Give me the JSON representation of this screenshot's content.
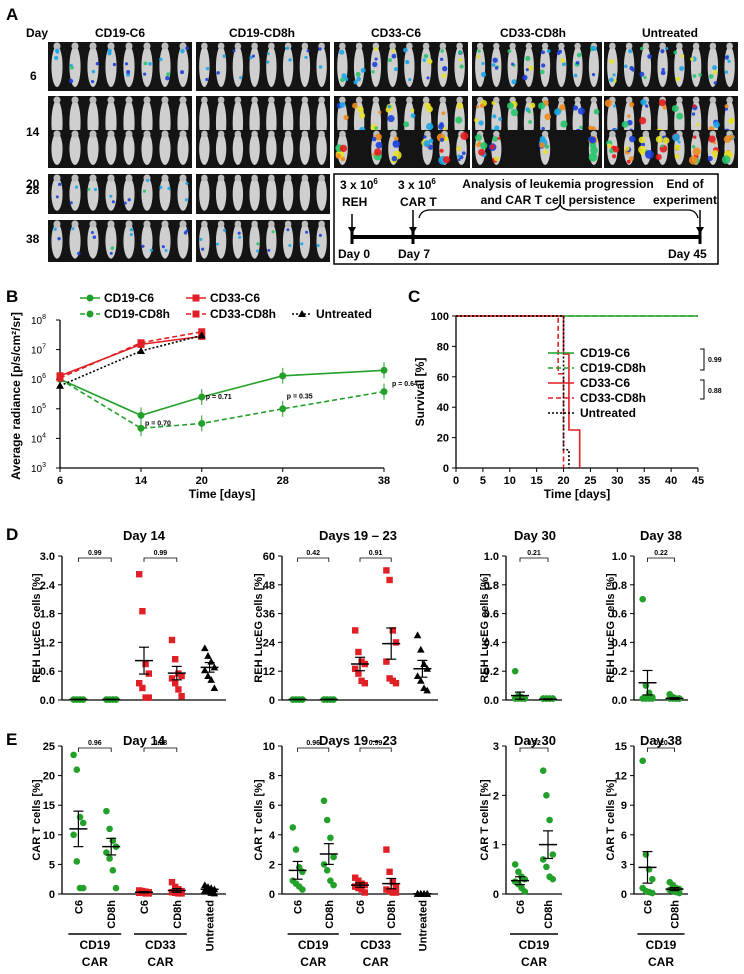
{
  "panel_labels": [
    "A",
    "B",
    "C",
    "D",
    "E"
  ],
  "panelA": {
    "day_header": "Day",
    "days": [
      "6",
      "14",
      "20",
      "28",
      "38"
    ],
    "groups": [
      "CD19-C6",
      "CD19-CD8h",
      "CD33-C6",
      "CD33-CD8h",
      "Untreated"
    ],
    "timeline": {
      "event1_line1": "3 x 10",
      "event1_sup": "6",
      "event1_line2": "REH",
      "event2_line1": "3 x 10",
      "event2_sup": "6",
      "event2_line2": "CAR T",
      "analysis_line1": "Analysis of leukemia progression",
      "analysis_line2": "and CAR T cell persistence",
      "end_line1": "End of",
      "end_line2": "experiment",
      "day0": "Day 0",
      "day7": "Day 7",
      "day45": "Day 45"
    }
  },
  "colors": {
    "green": "#22a02a",
    "red": "#e01f26",
    "black": "#000000"
  },
  "chart_data": [
    {
      "panel": "B",
      "type": "line",
      "title": "",
      "xlabel": "Time [days]",
      "ylabel": "Average radiance [p/s/cm²/sr]",
      "x": [
        6,
        14,
        20,
        28,
        38
      ],
      "xticks": [
        "6",
        "14",
        "20",
        "28",
        "38"
      ],
      "yscale": "log",
      "ylim": [
        1000,
        100000000
      ],
      "yticks": [
        "10",
        "10",
        "10",
        "10",
        "10",
        "10"
      ],
      "ytick_exp": [
        "3",
        "4",
        "5",
        "6",
        "7",
        "8"
      ],
      "series": [
        {
          "name": "CD19-C6",
          "x": [
            6,
            14,
            20,
            28,
            38
          ],
          "values": [
            1000000,
            60000,
            250000,
            1300000,
            2000000
          ]
        },
        {
          "name": "CD19-CD8h",
          "x": [
            6,
            14,
            20,
            28,
            38
          ],
          "values": [
            1000000,
            22000,
            32000,
            100000,
            380000
          ]
        },
        {
          "name": "CD33-C6",
          "x": [
            6,
            14,
            20
          ],
          "values": [
            1300000,
            15000000,
            28000000
          ]
        },
        {
          "name": "CD33-CD8h",
          "x": [
            6,
            14,
            20
          ],
          "values": [
            1100000,
            17000000,
            40000000
          ]
        },
        {
          "name": "Untreated",
          "x": [
            6,
            14,
            20
          ],
          "values": [
            600000,
            9000000,
            30000000
          ]
        }
      ],
      "annotations": [
        "p = 0.70",
        "p = 0.71",
        "p = 0.35",
        "p = 0.64"
      ]
    },
    {
      "panel": "C",
      "type": "line",
      "xlabel": "Time [days]",
      "ylabel": "Survival [%]",
      "xlim": [
        0,
        45
      ],
      "ylim": [
        0,
        100
      ],
      "xticks": [
        "0",
        "5",
        "10",
        "15",
        "20",
        "25",
        "30",
        "35",
        "40",
        "45"
      ],
      "yticks": [
        "0",
        "20",
        "40",
        "60",
        "80",
        "100"
      ],
      "series": [
        {
          "name": "CD19-C6",
          "x": [
            0,
            45
          ],
          "values": [
            100,
            100
          ]
        },
        {
          "name": "CD19-CD8h",
          "x": [
            0,
            45
          ],
          "values": [
            100,
            100
          ]
        },
        {
          "name": "CD33-C6",
          "x": [
            0,
            20,
            20,
            21,
            21,
            22,
            22,
            23,
            23
          ],
          "values": [
            100,
            100,
            75,
            75,
            25,
            25,
            25,
            25,
            0
          ]
        },
        {
          "name": "CD33-CD8h",
          "x": [
            0,
            19,
            19,
            20,
            20
          ],
          "values": [
            100,
            100,
            62,
            62,
            0
          ]
        },
        {
          "name": "Untreated",
          "x": [
            0,
            20,
            20,
            21,
            21
          ],
          "values": [
            100,
            100,
            12,
            12,
            0
          ]
        }
      ],
      "annotations": [
        "0.99",
        "0.88"
      ]
    },
    {
      "panel": "D1",
      "type": "scatter",
      "title": "Day 14",
      "ylabel": "REH LucEG cells [%]",
      "ylim": [
        0,
        3
      ],
      "yticks": [
        "0.0",
        "0.6",
        "1.2",
        "1.8",
        "2.4",
        "3.0"
      ],
      "groups": [
        {
          "name": "CD19-C6",
          "mean": 0.01,
          "sem": 0.005,
          "values": [
            0.01,
            0.01,
            0.01,
            0.01,
            0.01,
            0.01,
            0.01,
            0.01
          ]
        },
        {
          "name": "CD19-CD8h",
          "mean": 0.01,
          "sem": 0.005,
          "values": [
            0.01,
            0.01,
            0.01,
            0.01,
            0.01,
            0.01,
            0.01,
            0.01
          ]
        },
        {
          "name": "CD33-C6",
          "mean": 0.82,
          "sem": 0.28,
          "values": [
            2.62,
            1.85,
            0.75,
            0.55,
            0.35,
            0.25,
            0.05,
            0.05
          ]
        },
        {
          "name": "CD33-CD8h",
          "mean": 0.56,
          "sem": 0.14,
          "values": [
            1.25,
            0.85,
            0.55,
            0.5,
            0.45,
            0.35,
            0.22,
            0.08
          ]
        },
        {
          "name": "Untreated",
          "mean": 0.68,
          "sem": 0.1,
          "values": [
            1.08,
            0.92,
            0.8,
            0.68,
            0.62,
            0.5,
            0.42,
            0.25
          ]
        }
      ],
      "p_values": [
        "0.99",
        "0.99"
      ]
    },
    {
      "panel": "D2",
      "type": "scatter",
      "title": "Days 19 – 23",
      "ylabel": "REH LucEG cells [%]",
      "ylim": [
        0,
        60
      ],
      "yticks": [
        "0",
        "12",
        "24",
        "36",
        "48",
        "60"
      ],
      "groups": [
        {
          "name": "CD19-C6",
          "mean": 0.2,
          "sem": 0.1,
          "values": [
            0.2,
            0.2,
            0.2,
            0.2,
            0.2,
            0.2,
            0.2,
            0.2
          ]
        },
        {
          "name": "CD19-CD8h",
          "mean": 0.2,
          "sem": 0.1,
          "values": [
            0.2,
            0.2,
            0.2,
            0.2,
            0.2,
            0.2,
            0.2,
            0.2
          ]
        },
        {
          "name": "CD33-C6",
          "mean": 15,
          "sem": 2.8,
          "values": [
            29,
            20,
            16,
            15,
            13,
            11,
            8,
            7
          ]
        },
        {
          "name": "CD33-CD8h",
          "mean": 23.5,
          "sem": 6.5,
          "values": [
            54,
            50,
            29,
            24,
            16,
            9,
            8,
            7
          ]
        },
        {
          "name": "Untreated",
          "mean": 13,
          "sem": 3.5,
          "values": [
            27,
            21,
            15,
            13,
            10,
            8,
            5,
            4
          ]
        }
      ],
      "p_values": [
        "0.42",
        "0.91"
      ]
    },
    {
      "panel": "D3",
      "type": "scatter",
      "title": "Day 30",
      "ylabel": "REH LucEG cells [%]",
      "ylim": [
        0,
        1
      ],
      "yticks": [
        "0.0",
        "0.2",
        "0.4",
        "0.6",
        "0.8",
        "1.0"
      ],
      "groups": [
        {
          "name": "CD19-C6",
          "mean": 0.03,
          "sem": 0.025,
          "values": [
            0.2,
            0.03,
            0.02,
            0.01,
            0.01,
            0.01,
            0.01,
            0.01
          ]
        },
        {
          "name": "CD19-CD8h",
          "mean": 0.005,
          "sem": 0.003,
          "values": [
            0.01,
            0.01,
            0.01,
            0.01,
            0.01,
            0.01,
            0.01,
            0.01
          ]
        }
      ],
      "p_values": [
        "0.21"
      ]
    },
    {
      "panel": "D4",
      "type": "scatter",
      "title": "Day 38",
      "ylabel": "REH LucEG cells [%]",
      "ylim": [
        0,
        1
      ],
      "yticks": [
        "0.0",
        "0.2",
        "0.4",
        "0.6",
        "0.8",
        "1.0"
      ],
      "groups": [
        {
          "name": "CD19-C6",
          "mean": 0.12,
          "sem": 0.085,
          "values": [
            0.7,
            0.1,
            0.05,
            0.02,
            0.01,
            0.01,
            0.01,
            0.01
          ]
        },
        {
          "name": "CD19-CD8h",
          "mean": 0.01,
          "sem": 0.006,
          "values": [
            0.04,
            0.02,
            0.01,
            0.01,
            0.01,
            0.01,
            0.01,
            0.01
          ]
        }
      ],
      "p_values": [
        "0.22"
      ]
    },
    {
      "panel": "E1",
      "type": "scatter",
      "title": "Day 14",
      "ylabel": "CAR T cells [%]",
      "ylim": [
        0,
        25
      ],
      "yticks": [
        "0",
        "5",
        "10",
        "15",
        "20",
        "25"
      ],
      "groups": [
        {
          "name": "C6",
          "mean": 11,
          "sem": 3,
          "values": [
            23.5,
            21,
            13,
            12,
            10,
            5.5,
            1,
            1
          ]
        },
        {
          "name": "CD8h",
          "mean": 8,
          "sem": 1.4,
          "values": [
            14,
            11,
            9,
            8,
            7,
            6,
            4,
            1
          ]
        },
        {
          "name": "C6",
          "mean": 0.3,
          "sem": 0.1,
          "values": [
            0.6,
            0.5,
            0.4,
            0.3,
            0.2,
            0.2,
            0.1,
            0.1
          ]
        },
        {
          "name": "CD8h",
          "mean": 0.6,
          "sem": 0.3,
          "values": [
            2,
            1.2,
            0.8,
            0.5,
            0.3,
            0.2,
            0.1,
            0.1
          ]
        },
        {
          "name": "Untreated",
          "mean": 0.8,
          "sem": 0.2,
          "values": [
            1.5,
            1.2,
            1,
            0.8,
            0.6,
            0.4,
            0.2,
            0.1
          ]
        }
      ],
      "p_values": [
        "0.96",
        "0.28"
      ],
      "categories": [
        "CD19 CAR",
        "CD33 CAR"
      ]
    },
    {
      "panel": "E2",
      "type": "scatter",
      "title": "Days 19 – 23",
      "ylabel": "CAR T cells [%]",
      "ylim": [
        0,
        10
      ],
      "yticks": [
        "0",
        "2",
        "4",
        "6",
        "8",
        "10"
      ],
      "groups": [
        {
          "name": "C6",
          "mean": 1.6,
          "sem": 0.6,
          "values": [
            4.5,
            3,
            1.8,
            1.5,
            0.9,
            0.7,
            0.5,
            0.3
          ]
        },
        {
          "name": "CD8h",
          "mean": 2.7,
          "sem": 0.7,
          "values": [
            6.3,
            5,
            3.8,
            2.5,
            2,
            1.6,
            0.9,
            0.6
          ]
        },
        {
          "name": "C6",
          "mean": 0.6,
          "sem": 0.15,
          "values": [
            1.1,
            0.9,
            0.7,
            0.6,
            0.5,
            0.4,
            0.3,
            0.1
          ]
        },
        {
          "name": "CD8h",
          "mean": 0.7,
          "sem": 0.35,
          "values": [
            3,
            1.5,
            0.8,
            0.5,
            0.3,
            0.2,
            0.1,
            0.1
          ]
        },
        {
          "name": "Untreated",
          "mean": 0.02,
          "sem": 0.01,
          "values": [
            0.03,
            0.02,
            0.02,
            0.02,
            0.01,
            0.01,
            0.01,
            0.01
          ]
        }
      ],
      "p_values": [
        "0.96",
        "0.99"
      ],
      "categories": [
        "CD19 CAR",
        "CD33 CAR"
      ]
    },
    {
      "panel": "E3",
      "type": "scatter",
      "title": "Day 30",
      "ylabel": "CAR T cells [%]",
      "ylim": [
        0,
        3
      ],
      "yticks": [
        "0",
        "1",
        "2",
        "3"
      ],
      "groups": [
        {
          "name": "C6",
          "mean": 0.27,
          "sem": 0.08,
          "values": [
            0.6,
            0.45,
            0.35,
            0.3,
            0.25,
            0.2,
            0.12,
            0.05
          ]
        },
        {
          "name": "CD8h",
          "mean": 1.0,
          "sem": 0.28,
          "values": [
            2.5,
            2,
            1.5,
            0.8,
            0.7,
            0.55,
            0.35,
            0.3
          ]
        }
      ],
      "p_values": [
        "0.02"
      ],
      "categories": [
        "CD19 CAR"
      ]
    },
    {
      "panel": "E4",
      "type": "scatter",
      "title": "Day 38",
      "ylabel": "CAR T cells [%]",
      "ylim": [
        0,
        15
      ],
      "yticks": [
        "0",
        "3",
        "6",
        "9",
        "12",
        "15"
      ],
      "groups": [
        {
          "name": "C6",
          "mean": 2.7,
          "sem": 1.6,
          "values": [
            13.5,
            4,
            2.5,
            1.5,
            0.6,
            0.3,
            0.2,
            0.1
          ]
        },
        {
          "name": "CD8h",
          "mean": 0.5,
          "sem": 0.15,
          "values": [
            1.2,
            0.9,
            0.6,
            0.5,
            0.4,
            0.3,
            0.2,
            0.1
          ]
        }
      ],
      "p_values": [
        "0.20"
      ],
      "categories": [
        "CD19 CAR"
      ]
    }
  ]
}
